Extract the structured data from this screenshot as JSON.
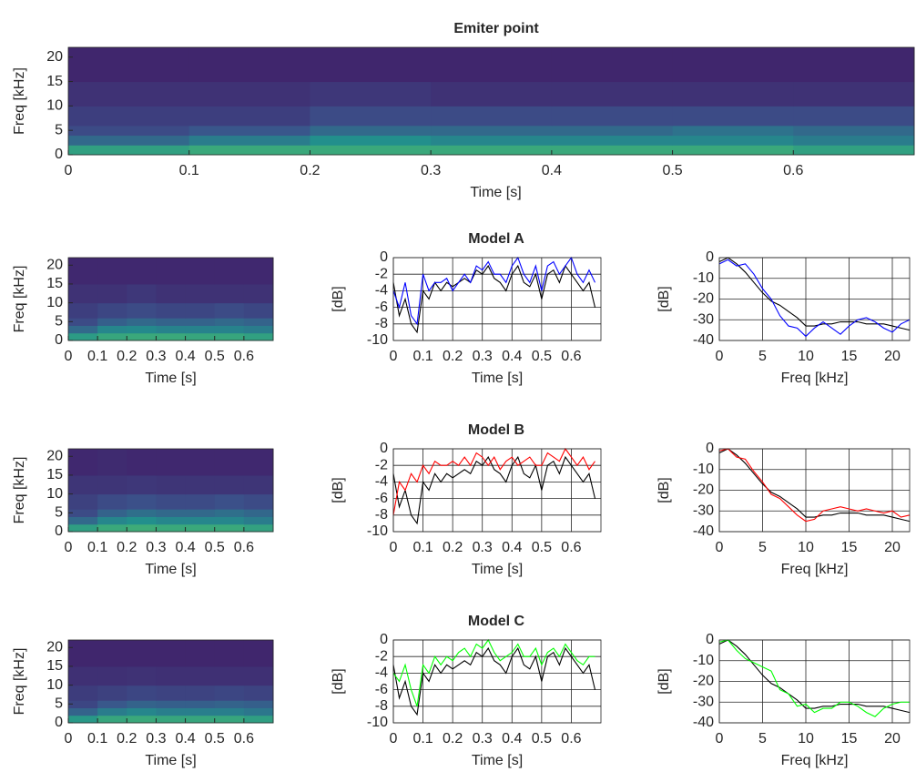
{
  "chart_data": [
    {
      "type": "heatmap",
      "title": "Emiter point",
      "xlabel": "Time [s]",
      "ylabel": "Freq [kHz]",
      "colormap": "viridis",
      "xbins": [
        0,
        0.1,
        0.2,
        0.3,
        0.4,
        0.5,
        0.6,
        0.7
      ],
      "ybins": [
        0,
        2,
        4,
        6,
        10,
        15,
        22
      ],
      "z": [
        [
          0.75,
          0.8,
          0.8,
          0.8,
          0.8,
          0.8,
          0.75
        ],
        [
          0.45,
          0.55,
          0.65,
          0.6,
          0.6,
          0.6,
          0.55
        ],
        [
          0.3,
          0.35,
          0.45,
          0.45,
          0.45,
          0.5,
          0.45
        ],
        [
          0.25,
          0.25,
          0.3,
          0.3,
          0.3,
          0.3,
          0.3
        ],
        [
          0.2,
          0.2,
          0.22,
          0.2,
          0.2,
          0.2,
          0.2
        ],
        [
          0.15,
          0.15,
          0.15,
          0.15,
          0.15,
          0.15,
          0.15
        ]
      ],
      "xlim": [
        0,
        0.7
      ],
      "ylim": [
        0,
        22
      ],
      "xticks": [
        0,
        0.1,
        0.2,
        0.3,
        0.4,
        0.5,
        0.6
      ],
      "yticks": [
        0,
        5,
        10,
        15,
        20
      ]
    },
    {
      "type": "heatmap",
      "xlabel": "Time [s]",
      "ylabel": "Freq [kHz]",
      "colormap": "viridis",
      "xbins": [
        0,
        0.1,
        0.2,
        0.3,
        0.4,
        0.5,
        0.6,
        0.7
      ],
      "ybins": [
        0,
        2,
        4,
        6,
        10,
        15,
        22
      ],
      "z": [
        [
          0.72,
          0.78,
          0.8,
          0.8,
          0.78,
          0.78,
          0.75
        ],
        [
          0.45,
          0.6,
          0.62,
          0.58,
          0.58,
          0.58,
          0.55
        ],
        [
          0.3,
          0.4,
          0.45,
          0.42,
          0.42,
          0.45,
          0.42
        ],
        [
          0.25,
          0.28,
          0.3,
          0.28,
          0.28,
          0.3,
          0.28
        ],
        [
          0.2,
          0.2,
          0.22,
          0.2,
          0.2,
          0.2,
          0.2
        ],
        [
          0.16,
          0.16,
          0.16,
          0.16,
          0.16,
          0.16,
          0.16
        ]
      ],
      "xlim": [
        0,
        0.7
      ],
      "ylim": [
        0,
        22
      ],
      "xticks": [
        0,
        0.1,
        0.2,
        0.3,
        0.4,
        0.5,
        0.6
      ],
      "yticks": [
        0,
        5,
        10,
        15,
        20
      ]
    },
    {
      "type": "line",
      "title": "Model A",
      "xlabel": "Time [s]",
      "ylabel": "[dB]",
      "grid": true,
      "x": [
        0,
        0.02,
        0.04,
        0.06,
        0.08,
        0.1,
        0.12,
        0.14,
        0.16,
        0.18,
        0.2,
        0.22,
        0.24,
        0.26,
        0.28,
        0.3,
        0.32,
        0.34,
        0.36,
        0.38,
        0.4,
        0.42,
        0.44,
        0.46,
        0.48,
        0.5,
        0.52,
        0.54,
        0.56,
        0.58,
        0.6,
        0.62,
        0.64,
        0.66,
        0.68
      ],
      "series": [
        {
          "color": "#000000",
          "values": [
            -3,
            -7,
            -5,
            -8,
            -9,
            -4,
            -5,
            -3,
            -4,
            -3,
            -3.5,
            -3,
            -2.5,
            -3,
            -1.5,
            -2,
            -1,
            -2.5,
            -3,
            -4,
            -2,
            -1,
            -3,
            -3.5,
            -2,
            -5,
            -2,
            -1.5,
            -3,
            -1,
            -2,
            -3,
            -4,
            -3,
            -6
          ]
        },
        {
          "color": "#0000ff",
          "values": [
            -4,
            -6,
            -3,
            -7,
            -8,
            -2,
            -4,
            -3,
            -3,
            -2.5,
            -4,
            -3,
            -2,
            -3,
            -1,
            -1.5,
            -0.5,
            -2,
            -2,
            -3,
            -1,
            0,
            -2,
            -3,
            -1,
            -4,
            -1,
            -0.5,
            -2,
            -1,
            0,
            -2,
            -3,
            -1.5,
            -3
          ]
        }
      ],
      "xlim": [
        0,
        0.7
      ],
      "ylim": [
        -10,
        0
      ],
      "xticks": [
        0,
        0.1,
        0.2,
        0.3,
        0.4,
        0.5,
        0.6
      ],
      "yticks": [
        0,
        -2,
        -4,
        -6,
        -8,
        -10
      ]
    },
    {
      "type": "line",
      "xlabel": "Freq [kHz]",
      "ylabel": "[dB]",
      "grid": true,
      "x": [
        0,
        1,
        2,
        3,
        4,
        5,
        6,
        7,
        8,
        9,
        10,
        11,
        12,
        13,
        14,
        15,
        16,
        17,
        18,
        19,
        20,
        21,
        22
      ],
      "series": [
        {
          "color": "#000000",
          "values": [
            -2,
            0,
            -3,
            -7,
            -12,
            -17,
            -21,
            -23,
            -26,
            -29,
            -33,
            -33,
            -32,
            -32,
            -31,
            -31,
            -31,
            -32,
            -32,
            -32,
            -33,
            -34,
            -35
          ]
        },
        {
          "color": "#0000ff",
          "values": [
            -3,
            -1,
            -4,
            -3,
            -8,
            -15,
            -20,
            -28,
            -33,
            -34,
            -38,
            -34,
            -31,
            -34,
            -37,
            -33,
            -30,
            -29,
            -31,
            -34,
            -36,
            -32,
            -30
          ]
        }
      ],
      "xlim": [
        0,
        22
      ],
      "ylim": [
        -40,
        0
      ],
      "xticks": [
        0,
        5,
        10,
        15,
        20
      ],
      "yticks": [
        0,
        -10,
        -20,
        -30,
        -40
      ]
    },
    {
      "type": "heatmap",
      "xlabel": "Time [s]",
      "ylabel": "Freq [kHz]",
      "colormap": "viridis",
      "xbins": [
        0,
        0.1,
        0.2,
        0.3,
        0.4,
        0.5,
        0.6,
        0.7
      ],
      "ybins": [
        0,
        2,
        4,
        6,
        10,
        15,
        22
      ],
      "z": [
        [
          0.74,
          0.8,
          0.82,
          0.8,
          0.8,
          0.8,
          0.76
        ],
        [
          0.45,
          0.6,
          0.65,
          0.6,
          0.6,
          0.6,
          0.55
        ],
        [
          0.3,
          0.42,
          0.48,
          0.45,
          0.45,
          0.48,
          0.44
        ],
        [
          0.26,
          0.3,
          0.32,
          0.3,
          0.3,
          0.32,
          0.3
        ],
        [
          0.21,
          0.21,
          0.22,
          0.21,
          0.21,
          0.21,
          0.21
        ],
        [
          0.16,
          0.17,
          0.16,
          0.16,
          0.16,
          0.16,
          0.16
        ]
      ],
      "xlim": [
        0,
        0.7
      ],
      "ylim": [
        0,
        22
      ],
      "xticks": [
        0,
        0.1,
        0.2,
        0.3,
        0.4,
        0.5,
        0.6
      ],
      "yticks": [
        0,
        5,
        10,
        15,
        20
      ]
    },
    {
      "type": "line",
      "title": "Model B",
      "xlabel": "Time [s]",
      "ylabel": "[dB]",
      "grid": true,
      "x": [
        0,
        0.02,
        0.04,
        0.06,
        0.08,
        0.1,
        0.12,
        0.14,
        0.16,
        0.18,
        0.2,
        0.22,
        0.24,
        0.26,
        0.28,
        0.3,
        0.32,
        0.34,
        0.36,
        0.38,
        0.4,
        0.42,
        0.44,
        0.46,
        0.48,
        0.5,
        0.52,
        0.54,
        0.56,
        0.58,
        0.6,
        0.62,
        0.64,
        0.66,
        0.68
      ],
      "series": [
        {
          "color": "#000000",
          "values": [
            -3,
            -7,
            -5,
            -8,
            -9,
            -4,
            -5,
            -3,
            -4,
            -3,
            -3.5,
            -3,
            -2.5,
            -3,
            -1.5,
            -2,
            -1,
            -2.5,
            -3,
            -4,
            -2,
            -1,
            -3,
            -3.5,
            -2,
            -5,
            -2,
            -1.5,
            -3,
            -1,
            -2,
            -3,
            -4,
            -3,
            -6
          ]
        },
        {
          "color": "#ff0000",
          "values": [
            -8,
            -4,
            -5,
            -3,
            -4,
            -2,
            -3,
            -1.5,
            -2,
            -2,
            -1.5,
            -2,
            -1,
            -2,
            -0.5,
            -1,
            -2,
            -1,
            -2.5,
            -1.5,
            -1,
            -2,
            -1.5,
            -1,
            -2,
            -2,
            -0.5,
            -1,
            -1.5,
            0,
            -1,
            -2,
            -1,
            -2.5,
            -1.5
          ]
        }
      ],
      "xlim": [
        0,
        0.7
      ],
      "ylim": [
        -10,
        0
      ],
      "xticks": [
        0,
        0.1,
        0.2,
        0.3,
        0.4,
        0.5,
        0.6
      ],
      "yticks": [
        0,
        -2,
        -4,
        -6,
        -8,
        -10
      ]
    },
    {
      "type": "line",
      "xlabel": "Freq [kHz]",
      "ylabel": "[dB]",
      "grid": true,
      "x": [
        0,
        1,
        2,
        3,
        4,
        5,
        6,
        7,
        8,
        9,
        10,
        11,
        12,
        13,
        14,
        15,
        16,
        17,
        18,
        19,
        20,
        21,
        22
      ],
      "series": [
        {
          "color": "#000000",
          "values": [
            -2,
            0,
            -3,
            -7,
            -12,
            -17,
            -21,
            -23,
            -26,
            -29,
            -33,
            -33,
            -32,
            -32,
            -31,
            -31,
            -31,
            -32,
            -32,
            -32,
            -33,
            -34,
            -35
          ]
        },
        {
          "color": "#ff0000",
          "values": [
            -1,
            0,
            -4,
            -5,
            -11,
            -16,
            -22,
            -24,
            -28,
            -32,
            -35,
            -34,
            -30,
            -29,
            -28,
            -29,
            -30,
            -29,
            -30,
            -31,
            -30,
            -33,
            -32
          ]
        }
      ],
      "xlim": [
        0,
        22
      ],
      "ylim": [
        -40,
        0
      ],
      "xticks": [
        0,
        5,
        10,
        15,
        20
      ],
      "yticks": [
        0,
        -10,
        -20,
        -30,
        -40
      ]
    },
    {
      "type": "heatmap",
      "xlabel": "Time [s]",
      "ylabel": "Freq [kHz]",
      "colormap": "viridis",
      "xbins": [
        0,
        0.1,
        0.2,
        0.3,
        0.4,
        0.5,
        0.6,
        0.7
      ],
      "ybins": [
        0,
        2,
        4,
        6,
        10,
        15,
        22
      ],
      "z": [
        [
          0.7,
          0.78,
          0.8,
          0.78,
          0.78,
          0.78,
          0.74
        ],
        [
          0.42,
          0.55,
          0.6,
          0.56,
          0.56,
          0.56,
          0.52
        ],
        [
          0.28,
          0.36,
          0.42,
          0.4,
          0.4,
          0.42,
          0.4
        ],
        [
          0.24,
          0.26,
          0.28,
          0.27,
          0.27,
          0.28,
          0.27
        ],
        [
          0.19,
          0.19,
          0.2,
          0.19,
          0.19,
          0.19,
          0.19
        ],
        [
          0.15,
          0.15,
          0.15,
          0.15,
          0.15,
          0.15,
          0.15
        ]
      ],
      "xlim": [
        0,
        0.7
      ],
      "ylim": [
        0,
        22
      ],
      "xticks": [
        0,
        0.1,
        0.2,
        0.3,
        0.4,
        0.5,
        0.6
      ],
      "yticks": [
        0,
        5,
        10,
        15,
        20
      ]
    },
    {
      "type": "line",
      "title": "Model C",
      "xlabel": "Time [s]",
      "ylabel": "[dB]",
      "grid": true,
      "x": [
        0,
        0.02,
        0.04,
        0.06,
        0.08,
        0.1,
        0.12,
        0.14,
        0.16,
        0.18,
        0.2,
        0.22,
        0.24,
        0.26,
        0.28,
        0.3,
        0.32,
        0.34,
        0.36,
        0.38,
        0.4,
        0.42,
        0.44,
        0.46,
        0.48,
        0.5,
        0.52,
        0.54,
        0.56,
        0.58,
        0.6,
        0.62,
        0.64,
        0.66,
        0.68
      ],
      "series": [
        {
          "color": "#000000",
          "values": [
            -3,
            -7,
            -5,
            -8,
            -9,
            -4,
            -5,
            -3,
            -4,
            -3,
            -3.5,
            -3,
            -2.5,
            -3,
            -1.5,
            -2,
            -1,
            -2.5,
            -3,
            -4,
            -2,
            -1,
            -3,
            -3.5,
            -2,
            -5,
            -2,
            -1.5,
            -3,
            -1,
            -2,
            -3,
            -4,
            -3,
            -6
          ]
        },
        {
          "color": "#00ff00",
          "values": [
            -4,
            -5,
            -3,
            -6,
            -8,
            -3,
            -4,
            -2,
            -3,
            -2,
            -2.5,
            -1.5,
            -1,
            -2,
            -0.5,
            -1,
            0,
            -1.5,
            -2.5,
            -2,
            -1.5,
            -0.5,
            -2,
            -2,
            -1,
            -3,
            -1.5,
            -1,
            -2,
            -0.5,
            -1.5,
            -2.5,
            -3,
            -2,
            -2
          ]
        }
      ],
      "xlim": [
        0,
        0.7
      ],
      "ylim": [
        -10,
        0
      ],
      "xticks": [
        0,
        0.1,
        0.2,
        0.3,
        0.4,
        0.5,
        0.6
      ],
      "yticks": [
        0,
        -2,
        -4,
        -6,
        -8,
        -10
      ]
    },
    {
      "type": "line",
      "xlabel": "Freq [kHz]",
      "ylabel": "[dB]",
      "grid": true,
      "x": [
        0,
        1,
        2,
        3,
        4,
        5,
        6,
        7,
        8,
        9,
        10,
        11,
        12,
        13,
        14,
        15,
        16,
        17,
        18,
        19,
        20,
        21,
        22
      ],
      "series": [
        {
          "color": "#000000",
          "values": [
            -2,
            0,
            -3,
            -7,
            -12,
            -17,
            -21,
            -23,
            -26,
            -29,
            -33,
            -33,
            -32,
            -32,
            -31,
            -31,
            -31,
            -32,
            -32,
            -32,
            -33,
            -34,
            -35
          ]
        },
        {
          "color": "#00ff00",
          "values": [
            -1,
            0,
            -5,
            -9,
            -11,
            -13,
            -15,
            -24,
            -26,
            -32,
            -31,
            -35,
            -33,
            -33,
            -30,
            -30,
            -32,
            -35,
            -37,
            -33,
            -31,
            -30,
            -30
          ]
        }
      ],
      "xlim": [
        0,
        22
      ],
      "ylim": [
        -40,
        0
      ],
      "xticks": [
        0,
        5,
        10,
        15,
        20
      ],
      "yticks": [
        0,
        -10,
        -20,
        -30,
        -40
      ]
    }
  ]
}
